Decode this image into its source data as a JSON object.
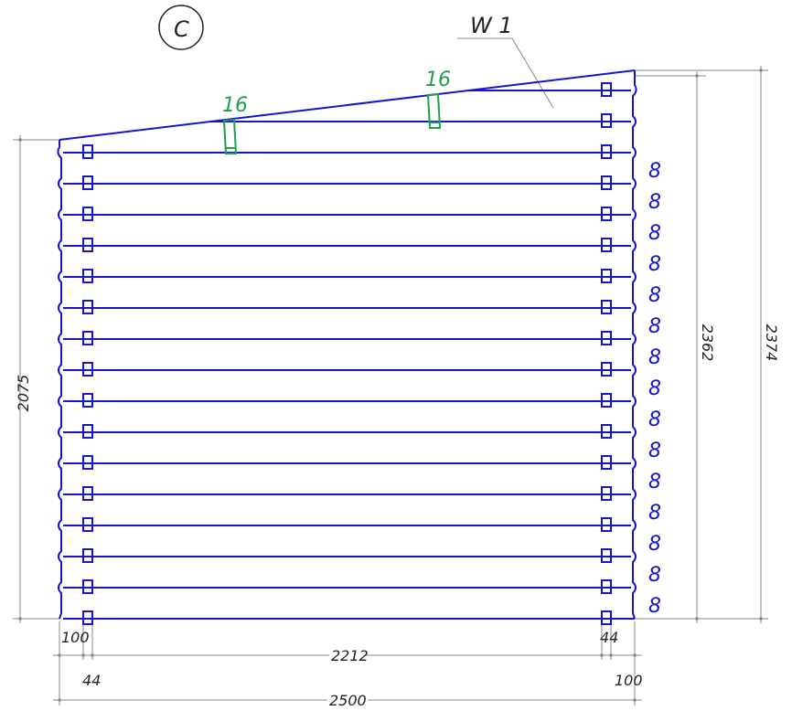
{
  "view_label": "C",
  "wall_label": "W 1",
  "log_counts": [
    "8",
    "8",
    "8",
    "8",
    "8",
    "8",
    "8",
    "8",
    "8",
    "8",
    "8",
    "8",
    "8",
    "8",
    "8"
  ],
  "green_marks": [
    "16",
    "16"
  ],
  "dimensions": {
    "bottom_left_offset": "100",
    "bottom_left_inner": "44",
    "inner_span": "2212",
    "bottom_right_inner": "44",
    "bottom_right_offset": "100",
    "overall_width": "2500",
    "left_height": "2075",
    "right_inner_height": "2362",
    "right_outer_height": "2374"
  },
  "colors": {
    "logs": "#1515d0",
    "dims": "#888888",
    "green": "#1ea04a",
    "text": "#222222"
  }
}
